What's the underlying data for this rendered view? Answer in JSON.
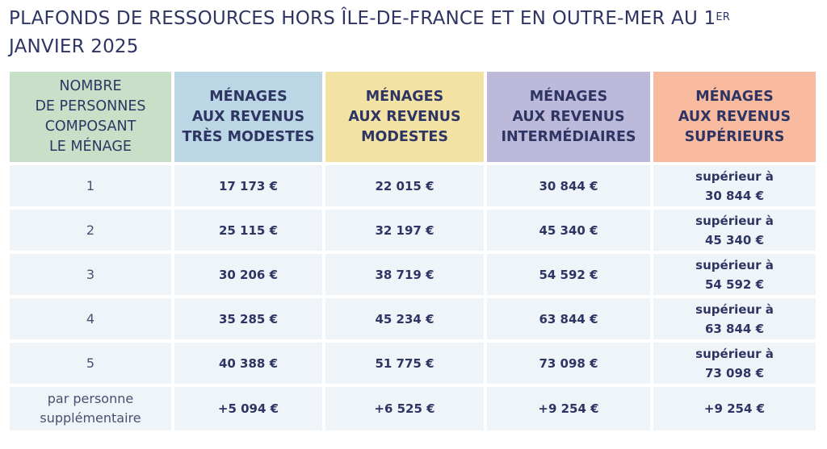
{
  "title": {
    "text": "PLAFONDS DE RESSOURCES HORS ÎLE-DE-FRANCE ET EN OUTRE-MER AU 1",
    "sup": "ER",
    "line2": "JANVIER 2025"
  },
  "colors": {
    "green": "#c8e0c8",
    "blue": "#bbd6e4",
    "yellow": "#f2e3a5",
    "purple": "#bdb9da",
    "orange": "#f8bba0",
    "row_bg": "#eff4f9",
    "text": "#2f3563"
  },
  "headers": [
    [
      "NOMBRE",
      "DE PERSONNES",
      "COMPOSANT",
      "LE MÉNAGE"
    ],
    [
      "MÉNAGES",
      "AUX REVENUS",
      "TRÈS MODESTES"
    ],
    [
      "MÉNAGES",
      "AUX REVENUS",
      "MODESTES"
    ],
    [
      "MÉNAGES",
      "AUX REVENUS",
      "INTERMÉDIAIRES"
    ],
    [
      "MÉNAGES",
      "AUX REVENUS",
      "SUPÉRIEURS"
    ]
  ],
  "rows": [
    {
      "persons": "1",
      "tres_modestes": "17 173 €",
      "modestes": "22 015 €",
      "intermediaires": "30 844 €",
      "superieurs_prefix": "supérieur à",
      "superieurs": "30 844 €"
    },
    {
      "persons": "2",
      "tres_modestes": "25 115 €",
      "modestes": "32 197 €",
      "intermediaires": "45 340 €",
      "superieurs_prefix": "supérieur à",
      "superieurs": "45 340 €"
    },
    {
      "persons": "3",
      "tres_modestes": "30 206 €",
      "modestes": "38 719 €",
      "intermediaires": "54 592 €",
      "superieurs_prefix": "supérieur à",
      "superieurs": "54 592 €"
    },
    {
      "persons": "4",
      "tres_modestes": "35 285 €",
      "modestes": "45 234 €",
      "intermediaires": "63 844 €",
      "superieurs_prefix": "supérieur à",
      "superieurs": "63 844 €"
    },
    {
      "persons": "5",
      "tres_modestes": "40 388 €",
      "modestes": "51 775 €",
      "intermediaires": "73 098 €",
      "superieurs_prefix": "supérieur à",
      "superieurs": "73 098 €"
    }
  ],
  "extra": {
    "persons_line1": "par personne",
    "persons_line2": "supplémentaire",
    "tres_modestes": "+5 094 €",
    "modestes": "+6 525 €",
    "intermediaires": "+9 254 €",
    "superieurs": "+9 254 €"
  }
}
